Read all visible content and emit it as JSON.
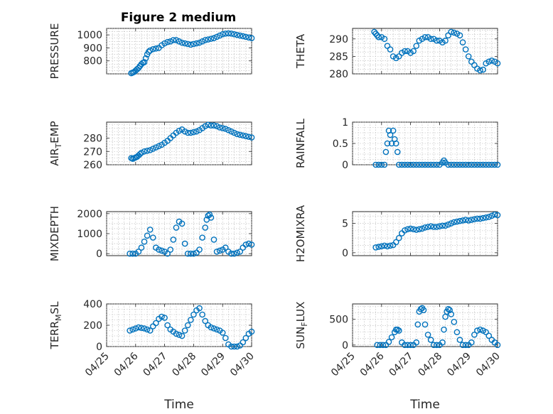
{
  "figure_title": "Figure 2 medium",
  "colors": {
    "marker": "#0072bd"
  },
  "chart_data": [
    {
      "type": "scatter",
      "ylabel": "PRESSURE",
      "ylim": [
        700,
        1050
      ],
      "yticks": [
        800,
        900,
        1000
      ],
      "xlim": [
        0,
        5
      ],
      "xticks": [
        0,
        1,
        2,
        3,
        4,
        5
      ],
      "xticklabels_shown": false,
      "grid": true,
      "x": [
        0.85,
        0.9,
        0.95,
        1.0,
        1.05,
        1.1,
        1.15,
        1.2,
        1.25,
        1.3,
        1.35,
        1.4,
        1.45,
        1.5,
        1.6,
        1.7,
        1.8,
        1.9,
        2.0,
        2.1,
        2.2,
        2.3,
        2.4,
        2.5,
        2.6,
        2.7,
        2.8,
        2.9,
        3.0,
        3.1,
        3.2,
        3.3,
        3.4,
        3.5,
        3.6,
        3.7,
        3.8,
        3.9,
        4.0,
        4.1,
        4.2,
        4.3,
        4.4,
        4.5,
        4.6,
        4.7,
        4.8,
        4.9,
        5.0
      ],
      "y": [
        705,
        710,
        715,
        725,
        735,
        745,
        760,
        775,
        785,
        790,
        820,
        850,
        870,
        880,
        890,
        895,
        900,
        920,
        935,
        945,
        950,
        960,
        960,
        950,
        940,
        935,
        930,
        925,
        930,
        935,
        940,
        950,
        960,
        965,
        970,
        975,
        985,
        995,
        1005,
        1010,
        1012,
        1010,
        1005,
        1000,
        995,
        990,
        985,
        980,
        975
      ]
    },
    {
      "type": "scatter",
      "ylabel": "THETA",
      "ylim": [
        280,
        293
      ],
      "yticks": [
        280,
        285,
        290
      ],
      "xlim": [
        0,
        5
      ],
      "xticks": [
        0,
        1,
        2,
        3,
        4,
        5
      ],
      "xticklabels_shown": false,
      "grid": true,
      "x": [
        0.75,
        0.8,
        0.85,
        0.9,
        1.0,
        1.1,
        1.2,
        1.3,
        1.4,
        1.5,
        1.6,
        1.7,
        1.8,
        1.9,
        2.0,
        2.1,
        2.2,
        2.3,
        2.4,
        2.5,
        2.6,
        2.7,
        2.8,
        2.9,
        3.0,
        3.1,
        3.2,
        3.3,
        3.4,
        3.5,
        3.6,
        3.7,
        3.8,
        3.9,
        4.0,
        4.1,
        4.2,
        4.3,
        4.4,
        4.5,
        4.6,
        4.7,
        4.8,
        4.9,
        5.0
      ],
      "y": [
        292,
        291.5,
        291,
        290.5,
        290.5,
        290,
        288,
        287,
        285,
        284.5,
        285,
        286,
        286.5,
        286.5,
        286,
        286.5,
        288,
        289.5,
        290,
        290.5,
        290.5,
        290,
        290,
        289.5,
        289.5,
        289,
        289.5,
        291,
        292,
        291.8,
        291.5,
        291,
        289,
        287,
        285,
        283.5,
        282.5,
        281.5,
        281,
        281.2,
        283,
        283.5,
        283.8,
        283.5,
        283
      ]
    },
    {
      "type": "scatter",
      "ylabel": "AIR_TEMP",
      "ylim": [
        260,
        292
      ],
      "yticks": [
        260,
        270,
        280
      ],
      "xlim": [
        0,
        5
      ],
      "xticks": [
        0,
        1,
        2,
        3,
        4,
        5
      ],
      "xticklabels_shown": false,
      "grid": true,
      "x": [
        0.85,
        0.9,
        0.95,
        1.0,
        1.05,
        1.1,
        1.15,
        1.2,
        1.3,
        1.4,
        1.5,
        1.6,
        1.7,
        1.8,
        1.9,
        2.0,
        2.1,
        2.2,
        2.3,
        2.4,
        2.5,
        2.6,
        2.7,
        2.8,
        2.9,
        3.0,
        3.1,
        3.2,
        3.3,
        3.4,
        3.5,
        3.6,
        3.7,
        3.8,
        3.9,
        4.0,
        4.1,
        4.2,
        4.3,
        4.4,
        4.5,
        4.6,
        4.7,
        4.8,
        4.9,
        5.0
      ],
      "y": [
        265,
        264.5,
        265,
        265.5,
        266,
        267,
        268,
        269,
        270,
        270.5,
        271,
        272,
        273,
        274,
        275,
        276.5,
        278,
        280,
        282,
        284,
        285.5,
        286.5,
        285,
        284,
        284,
        284.5,
        285,
        286,
        287.5,
        289,
        290,
        289.5,
        289.5,
        289,
        288,
        287.5,
        287,
        286,
        285,
        284,
        283,
        282.5,
        282,
        281.5,
        281,
        280.5
      ]
    },
    {
      "type": "scatter",
      "ylabel": "RAINFALL",
      "ylim": [
        0,
        1
      ],
      "yticks": [
        0,
        0.5,
        1
      ],
      "xlim": [
        0,
        5
      ],
      "xticks": [
        0,
        1,
        2,
        3,
        4,
        5
      ],
      "xticklabels_shown": false,
      "grid": true,
      "x": [
        0.8,
        0.9,
        1.0,
        1.1,
        1.15,
        1.2,
        1.25,
        1.3,
        1.35,
        1.4,
        1.45,
        1.5,
        1.55,
        1.6,
        1.7,
        1.8,
        1.9,
        2.0,
        2.1,
        2.2,
        2.3,
        2.4,
        2.5,
        2.6,
        2.7,
        2.8,
        2.9,
        3.0,
        3.1,
        3.15,
        3.2,
        3.3,
        3.4,
        3.5,
        3.6,
        3.7,
        3.8,
        3.9,
        4.0,
        4.1,
        4.2,
        4.3,
        4.4,
        4.5,
        4.6,
        4.7,
        4.8,
        4.9,
        5.0
      ],
      "y": [
        0,
        0,
        0,
        0,
        0.3,
        0.5,
        0.8,
        0.7,
        0.5,
        0.8,
        0.6,
        0.5,
        0.3,
        0,
        0,
        0,
        0,
        0,
        0,
        0,
        0,
        0,
        0,
        0,
        0,
        0,
        0,
        0,
        0.05,
        0.1,
        0.05,
        0,
        0,
        0,
        0,
        0,
        0,
        0,
        0,
        0,
        0,
        0,
        0,
        0,
        0,
        0,
        0,
        0,
        0
      ]
    },
    {
      "type": "scatter",
      "ylabel": "MIXDEPTH",
      "ylim": [
        -100,
        2100
      ],
      "yticks": [
        0,
        1000,
        2000
      ],
      "xlim": [
        0,
        5
      ],
      "xticks": [
        0,
        1,
        2,
        3,
        4,
        5
      ],
      "xticklabels_shown": false,
      "grid": true,
      "x": [
        0.8,
        0.9,
        1.0,
        1.1,
        1.2,
        1.3,
        1.4,
        1.5,
        1.6,
        1.7,
        1.8,
        1.9,
        2.0,
        2.1,
        2.2,
        2.3,
        2.4,
        2.5,
        2.6,
        2.7,
        2.8,
        2.9,
        3.0,
        3.1,
        3.2,
        3.3,
        3.4,
        3.45,
        3.5,
        3.55,
        3.6,
        3.7,
        3.8,
        3.9,
        4.0,
        4.1,
        4.2,
        4.3,
        4.4,
        4.5,
        4.6,
        4.7,
        4.8,
        4.9,
        5.0
      ],
      "y": [
        0,
        0,
        0,
        100,
        300,
        600,
        900,
        1200,
        800,
        300,
        200,
        150,
        100,
        0,
        200,
        700,
        1300,
        1600,
        1500,
        500,
        0,
        0,
        0,
        50,
        200,
        800,
        1300,
        1700,
        1900,
        1950,
        1800,
        700,
        100,
        150,
        200,
        300,
        100,
        0,
        0,
        50,
        100,
        300,
        450,
        500,
        450
      ]
    },
    {
      "type": "scatter",
      "ylabel": "H2OMIXRA",
      "ylim": [
        -0.5,
        7
      ],
      "yticks": [
        0,
        5
      ],
      "xlim": [
        0,
        5
      ],
      "xticks": [
        0,
        1,
        2,
        3,
        4,
        5
      ],
      "xticklabels_shown": false,
      "grid": true,
      "x": [
        0.8,
        0.9,
        1.0,
        1.1,
        1.2,
        1.3,
        1.4,
        1.5,
        1.6,
        1.7,
        1.8,
        1.9,
        2.0,
        2.1,
        2.2,
        2.3,
        2.4,
        2.5,
        2.6,
        2.7,
        2.8,
        2.9,
        3.0,
        3.1,
        3.2,
        3.3,
        3.4,
        3.5,
        3.6,
        3.7,
        3.8,
        3.9,
        4.0,
        4.1,
        4.2,
        4.3,
        4.4,
        4.5,
        4.6,
        4.7,
        4.8,
        4.9,
        5.0
      ],
      "y": [
        0.9,
        1.0,
        1.1,
        1.2,
        1.1,
        1.2,
        1.3,
        1.8,
        2.5,
        3.3,
        3.8,
        4.0,
        4.1,
        4.0,
        3.9,
        4.0,
        4.1,
        4.3,
        4.4,
        4.5,
        4.4,
        4.4,
        4.5,
        4.6,
        4.6,
        4.8,
        5.0,
        5.2,
        5.3,
        5.4,
        5.5,
        5.6,
        5.5,
        5.6,
        5.7,
        5.8,
        5.8,
        5.9,
        6.0,
        6.1,
        6.3,
        6.5,
        6.4
      ]
    },
    {
      "type": "scatter",
      "ylabel": "TERR_MSL",
      "ylim": [
        0,
        400
      ],
      "yticks": [
        0,
        200,
        400
      ],
      "xlim": [
        0,
        5
      ],
      "xticks": [
        0,
        1,
        2,
        3,
        4,
        5
      ],
      "xticklabels": [
        "04/25",
        "04/26",
        "04/27",
        "04/28",
        "04/29",
        "04/30"
      ],
      "xlabel": "Time",
      "grid": true,
      "x": [
        0.8,
        0.9,
        1.0,
        1.1,
        1.2,
        1.3,
        1.4,
        1.5,
        1.6,
        1.7,
        1.8,
        1.9,
        2.0,
        2.1,
        2.2,
        2.3,
        2.4,
        2.5,
        2.6,
        2.7,
        2.8,
        2.9,
        3.0,
        3.1,
        3.2,
        3.3,
        3.4,
        3.5,
        3.6,
        3.7,
        3.8,
        3.9,
        4.0,
        4.1,
        4.2,
        4.3,
        4.4,
        4.5,
        4.6,
        4.7,
        4.8,
        4.9,
        5.0
      ],
      "y": [
        150,
        160,
        170,
        180,
        175,
        170,
        160,
        150,
        190,
        220,
        260,
        280,
        270,
        200,
        160,
        140,
        120,
        110,
        100,
        150,
        200,
        250,
        300,
        340,
        360,
        300,
        240,
        200,
        180,
        170,
        160,
        150,
        130,
        80,
        20,
        0,
        0,
        0,
        10,
        40,
        80,
        120,
        140
      ]
    },
    {
      "type": "scatter",
      "ylabel": "SUN_FLUX",
      "ylim": [
        -30,
        800
      ],
      "yticks": [
        0,
        500
      ],
      "xlim": [
        0,
        5
      ],
      "xticks": [
        0,
        1,
        2,
        3,
        4,
        5
      ],
      "xticklabels": [
        "04/25",
        "04/26",
        "04/27",
        "04/28",
        "04/29",
        "04/30"
      ],
      "xlabel": "Time",
      "grid": true,
      "x": [
        0.85,
        0.95,
        1.05,
        1.15,
        1.25,
        1.35,
        1.45,
        1.5,
        1.55,
        1.6,
        1.7,
        1.8,
        1.9,
        2.0,
        2.1,
        2.2,
        2.25,
        2.3,
        2.35,
        2.4,
        2.45,
        2.5,
        2.6,
        2.7,
        2.8,
        2.9,
        3.0,
        3.1,
        3.15,
        3.2,
        3.25,
        3.3,
        3.35,
        3.4,
        3.5,
        3.6,
        3.7,
        3.8,
        3.9,
        4.0,
        4.1,
        4.2,
        4.3,
        4.4,
        4.5,
        4.6,
        4.7,
        4.8,
        4.9,
        5.0
      ],
      "y": [
        0,
        0,
        0,
        0,
        60,
        150,
        250,
        300,
        300,
        280,
        50,
        0,
        0,
        0,
        0,
        50,
        400,
        650,
        700,
        720,
        680,
        400,
        200,
        100,
        0,
        0,
        0,
        50,
        300,
        550,
        650,
        700,
        680,
        600,
        450,
        250,
        100,
        0,
        0,
        0,
        50,
        200,
        280,
        300,
        280,
        250,
        180,
        100,
        50,
        0
      ]
    }
  ]
}
